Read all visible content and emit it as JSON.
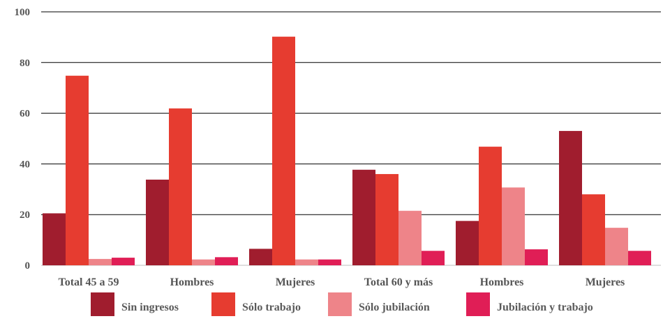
{
  "chart_data": {
    "type": "bar",
    "categories": [
      "Total 45 a 59",
      "Hombres",
      "Mujeres",
      "Total 60 y más",
      "Hombres",
      "Mujeres"
    ],
    "ylim": [
      0,
      100
    ],
    "yticks": [
      0,
      20,
      40,
      60,
      80,
      100
    ],
    "grid": true,
    "legend_position": "bottom",
    "series": [
      {
        "name": "Sin ingresos",
        "color": "#a01d2e",
        "values": [
          20.5,
          33.8,
          6.5,
          37.7,
          17.5,
          53
        ]
      },
      {
        "name": "Sólo trabajo",
        "color": "#e63c30",
        "values": [
          74.8,
          61.9,
          90.2,
          36,
          46.8,
          28
        ]
      },
      {
        "name": "Sólo jubilación",
        "color": "#ee8489",
        "values": [
          2.5,
          2.3,
          2.3,
          21.5,
          30.7,
          14.8
        ]
      },
      {
        "name": "Jubilación y trabajo",
        "color": "#e01e56",
        "values": [
          3,
          3.2,
          2.3,
          5.7,
          6.3,
          5.7
        ]
      }
    ]
  }
}
